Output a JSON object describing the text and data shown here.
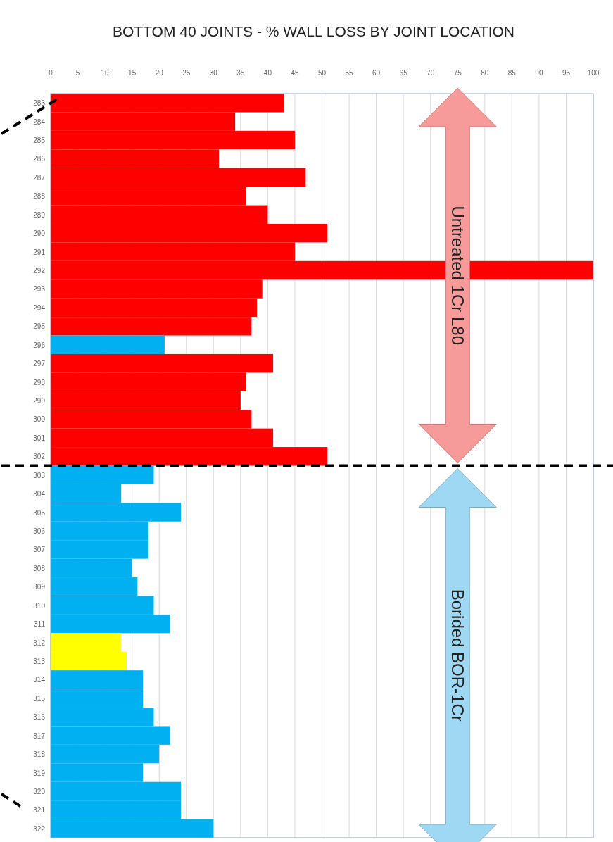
{
  "chart_data": {
    "type": "bar",
    "orientation": "horizontal",
    "title": "BOTTOM 40 JOINTS - % WALL LOSS BY JOINT LOCATION",
    "categories": [
      "283",
      "284",
      "285",
      "286",
      "287",
      "288",
      "289",
      "290",
      "291",
      "292",
      "293",
      "294",
      "295",
      "296",
      "297",
      "298",
      "299",
      "300",
      "301",
      "302",
      "303",
      "304",
      "305",
      "306",
      "307",
      "308",
      "309",
      "310",
      "311",
      "312",
      "313",
      "314",
      "315",
      "316",
      "317",
      "318",
      "319",
      "320",
      "321",
      "322"
    ],
    "values": [
      43,
      34,
      45,
      31,
      47,
      36,
      40,
      51,
      45,
      100,
      39,
      38,
      37,
      21,
      41,
      36,
      35,
      37,
      41,
      51,
      19,
      13,
      24,
      18,
      18,
      15,
      16,
      19,
      22,
      13,
      14,
      17,
      17,
      19,
      22,
      20,
      17,
      24,
      24,
      30
    ],
    "colors": [
      "#ff0000",
      "#ff0000",
      "#ff0000",
      "#ff0000",
      "#ff0000",
      "#ff0000",
      "#ff0000",
      "#ff0000",
      "#ff0000",
      "#ff0000",
      "#ff0000",
      "#ff0000",
      "#ff0000",
      "#00b0f0",
      "#ff0000",
      "#ff0000",
      "#ff0000",
      "#ff0000",
      "#ff0000",
      "#ff0000",
      "#00b0f0",
      "#00b0f0",
      "#00b0f0",
      "#00b0f0",
      "#00b0f0",
      "#00b0f0",
      "#00b0f0",
      "#00b0f0",
      "#00b0f0",
      "#ffff00",
      "#ffff00",
      "#00b0f0",
      "#00b0f0",
      "#00b0f0",
      "#00b0f0",
      "#00b0f0",
      "#00b0f0",
      "#00b0f0",
      "#00b0f0",
      "#00b0f0"
    ],
    "xlim": [
      0,
      100
    ],
    "xticks": [
      0,
      5,
      10,
      15,
      20,
      25,
      30,
      35,
      40,
      45,
      50,
      55,
      60,
      65,
      70,
      75,
      80,
      85,
      90,
      95,
      100
    ],
    "grid": "x",
    "annotations": [
      "Untreated 1Cr L80",
      "Borided BOR-1Cr"
    ]
  }
}
